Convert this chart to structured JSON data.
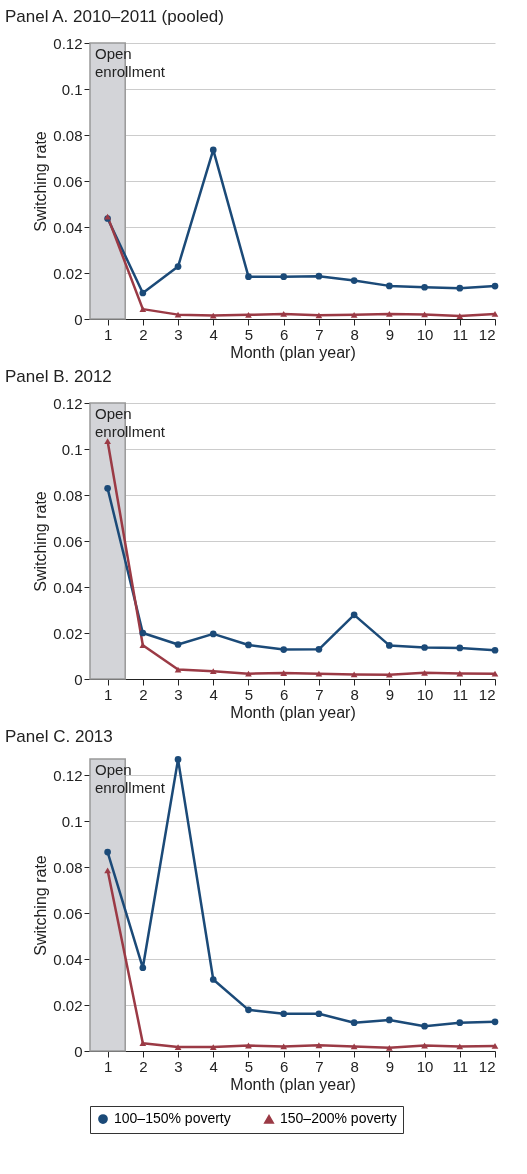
{
  "chart_data": [
    {
      "type": "line",
      "title": "Panel A. 2010–2011 (pooled)",
      "xlabel": "Month (plan year)",
      "ylabel": "Switching rate",
      "x": [
        1,
        2,
        3,
        4,
        5,
        6,
        7,
        8,
        9,
        10,
        11,
        12
      ],
      "xlim": [
        0.5,
        12
      ],
      "xticks": [
        1,
        2,
        3,
        4,
        5,
        6,
        7,
        8,
        9,
        10,
        11,
        12
      ],
      "ylim": [
        0,
        0.12
      ],
      "yticks": [
        0,
        0.02,
        0.04,
        0.06,
        0.08,
        0.1,
        0.12
      ],
      "grid": "y",
      "bands": [
        {
          "axis": "x",
          "from": 0.5,
          "to": 1.5,
          "label": "Open enrollment",
          "color": "#d3d4d8"
        }
      ],
      "series": [
        {
          "color": "#1b4a78",
          "marker": "circle",
          "values": [
            0.0437,
            0.0113,
            0.0228,
            0.0735,
            0.0184,
            0.0184,
            0.0186,
            0.0167,
            0.0144,
            0.0138,
            0.0134,
            0.0143
          ]
        },
        {
          "color": "#9b3a45",
          "marker": "triangle",
          "values": [
            0.0445,
            0.0043,
            0.0019,
            0.0015,
            0.0018,
            0.0022,
            0.0016,
            0.0018,
            0.0022,
            0.002,
            0.0013,
            0.0022
          ]
        }
      ]
    },
    {
      "type": "line",
      "title": "Panel B. 2012",
      "xlabel": "Month (plan year)",
      "ylabel": "Switching rate",
      "x": [
        1,
        2,
        3,
        4,
        5,
        6,
        7,
        8,
        9,
        10,
        11,
        12
      ],
      "xlim": [
        0.5,
        12
      ],
      "xticks": [
        1,
        2,
        3,
        4,
        5,
        6,
        7,
        8,
        9,
        10,
        11,
        12
      ],
      "ylim": [
        0,
        0.12
      ],
      "yticks": [
        0,
        0.02,
        0.04,
        0.06,
        0.08,
        0.1,
        0.12
      ],
      "grid": "y",
      "bands": [
        {
          "axis": "x",
          "from": 0.5,
          "to": 1.5,
          "label": "Open enrollment",
          "color": "#d3d4d8"
        }
      ],
      "series": [
        {
          "color": "#1b4a78",
          "marker": "circle",
          "values": [
            0.0829,
            0.02,
            0.015,
            0.0196,
            0.0148,
            0.0128,
            0.0129,
            0.0279,
            0.0146,
            0.0137,
            0.0135,
            0.0125
          ]
        },
        {
          "color": "#9b3a45",
          "marker": "triangle",
          "values": [
            0.1034,
            0.0147,
            0.0041,
            0.0034,
            0.0023,
            0.0026,
            0.0023,
            0.002,
            0.0019,
            0.0027,
            0.0024,
            0.0023
          ]
        }
      ]
    },
    {
      "type": "line",
      "title": "Panel C. 2013",
      "xlabel": "Month (plan year)",
      "ylabel": "Switching rate",
      "x": [
        1,
        2,
        3,
        4,
        5,
        6,
        7,
        8,
        9,
        10,
        11,
        12
      ],
      "xlim": [
        0.5,
        12
      ],
      "xticks": [
        1,
        2,
        3,
        4,
        5,
        6,
        7,
        8,
        9,
        10,
        11,
        12
      ],
      "ylim": [
        0,
        0.127
      ],
      "yticks": [
        0,
        0.02,
        0.04,
        0.06,
        0.08,
        0.1,
        0.12
      ],
      "grid": "y",
      "legend": "bottom",
      "bands": [
        {
          "axis": "x",
          "from": 0.5,
          "to": 1.5,
          "label": "Open enrollment",
          "color": "#d3d4d8"
        }
      ],
      "series": [
        {
          "name": "100–150% poverty",
          "color": "#1b4a78",
          "marker": "circle",
          "values": [
            0.0865,
            0.0362,
            0.1268,
            0.0311,
            0.0179,
            0.0162,
            0.0162,
            0.0123,
            0.0135,
            0.0108,
            0.0123,
            0.0127
          ]
        },
        {
          "name": "150–200% poverty",
          "color": "#9b3a45",
          "marker": "triangle",
          "values": [
            0.0786,
            0.0034,
            0.0017,
            0.0017,
            0.0024,
            0.002,
            0.0025,
            0.002,
            0.0014,
            0.0024,
            0.002,
            0.0022
          ]
        }
      ]
    }
  ]
}
